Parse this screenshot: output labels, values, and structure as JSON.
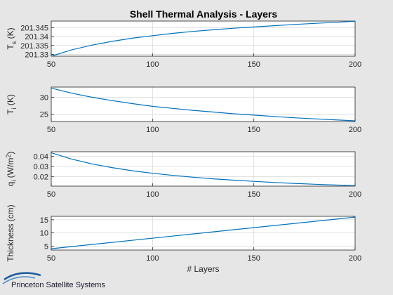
{
  "title": "Shell Thermal Analysis - Layers",
  "logo": {
    "text": "Princeton Satellite Systems"
  },
  "colors": {
    "background": "#e6e6e6",
    "axes_bg": "#ffffff",
    "line": "#0072bd",
    "grid": "#d9d9d9",
    "axis": "#262626",
    "logo": "#1a5c9e"
  },
  "chart_data": [
    {
      "type": "line",
      "ylabel": "T_s (K)",
      "ylabel_main": "T",
      "ylabel_sub": "s",
      "ylabel_rest": " (K)",
      "xlim": [
        50,
        200
      ],
      "ylim": [
        201.329,
        201.3487
      ],
      "xticks": [
        50,
        100,
        150,
        200
      ],
      "yticks": [
        201.33,
        201.335,
        201.34,
        201.345
      ],
      "ytick_labels": [
        "201.33",
        "201.335",
        "201.34",
        "201.345"
      ],
      "grid": true,
      "x": [
        50,
        60,
        70,
        80,
        90,
        100,
        110,
        120,
        130,
        140,
        150,
        160,
        170,
        180,
        190,
        200
      ],
      "y": [
        201.329,
        201.3325,
        201.3352,
        201.3373,
        201.3391,
        201.3405,
        201.3418,
        201.3429,
        201.3438,
        201.3447,
        201.3454,
        201.3461,
        201.3468,
        201.3474,
        201.348,
        201.3486
      ]
    },
    {
      "type": "line",
      "ylabel": "T_i (K)",
      "ylabel_main": "T",
      "ylabel_sub": "i",
      "ylabel_rest": " (K)",
      "xlim": [
        50,
        200
      ],
      "ylim": [
        22.8,
        33
      ],
      "xticks": [
        50,
        100,
        150,
        200
      ],
      "yticks": [
        25,
        30
      ],
      "ytick_labels": [
        "25",
        "30"
      ],
      "grid": true,
      "x": [
        50,
        60,
        70,
        80,
        90,
        100,
        110,
        120,
        130,
        140,
        150,
        160,
        170,
        180,
        190,
        200
      ],
      "y": [
        32.7,
        31.2,
        30.0,
        29.0,
        28.1,
        27.3,
        26.7,
        26.1,
        25.6,
        25.1,
        24.7,
        24.3,
        23.9,
        23.6,
        23.3,
        23.0
      ]
    },
    {
      "type": "line",
      "ylabel": "q_i (W/m^2)",
      "ylabel_main": "q",
      "ylabel_sub": "i",
      "ylabel_rest": " (W/m",
      "ylabel_sup": "2",
      "ylabel_close": ")",
      "xlim": [
        50,
        200
      ],
      "ylim": [
        0.0105,
        0.0445
      ],
      "xticks": [
        50,
        100,
        150,
        200
      ],
      "yticks": [
        0.02,
        0.03,
        0.04
      ],
      "ytick_labels": [
        "0.02",
        "0.03",
        "0.04"
      ],
      "grid": true,
      "x": [
        50,
        60,
        70,
        80,
        90,
        100,
        110,
        120,
        130,
        140,
        150,
        160,
        170,
        180,
        190,
        200
      ],
      "y": [
        0.0435,
        0.0373,
        0.0325,
        0.0288,
        0.0257,
        0.0232,
        0.0211,
        0.0193,
        0.0177,
        0.0164,
        0.0152,
        0.0141,
        0.0132,
        0.0124,
        0.0116,
        0.011
      ]
    },
    {
      "type": "line",
      "ylabel": "Thickness (cm)",
      "ylabel_main": "Thickness (cm)",
      "xlabel": "# Layers",
      "xlim": [
        50,
        200
      ],
      "ylim": [
        3.5,
        16.3
      ],
      "xticks": [
        50,
        100,
        150,
        200
      ],
      "yticks": [
        5,
        10,
        15
      ],
      "ytick_labels": [
        "5",
        "10",
        "15"
      ],
      "grid": true,
      "x": [
        50,
        200
      ],
      "y": [
        4.0,
        16.0
      ]
    }
  ]
}
